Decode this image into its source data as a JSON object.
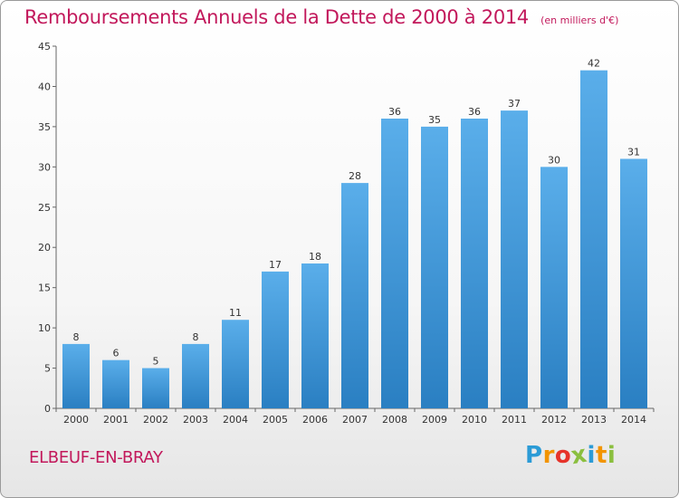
{
  "chart_data": {
    "type": "bar",
    "title": "Remboursements Annuels de la Dette de 2000 à 2014",
    "unit_note": "(en milliers d'€)",
    "categories": [
      "2000",
      "2001",
      "2002",
      "2003",
      "2004",
      "2005",
      "2006",
      "2007",
      "2008",
      "2009",
      "2010",
      "2011",
      "2012",
      "2013",
      "2014"
    ],
    "values": [
      8,
      6,
      5,
      8,
      11,
      17,
      18,
      28,
      36,
      35,
      36,
      37,
      30,
      42,
      31
    ],
    "ylim": [
      0,
      45
    ],
    "yticks": [
      0,
      5,
      10,
      15,
      20,
      25,
      30,
      35,
      40,
      45
    ],
    "xlabel": "",
    "ylabel": "",
    "grid": false,
    "bar_color": "#4ea0e0"
  },
  "commune": "ELBEUF-EN-BRAY",
  "logo": {
    "letters": [
      "P",
      "r",
      "o",
      "x",
      "i",
      "t",
      "i"
    ],
    "colors": [
      "#2b9bd6",
      "#f29400",
      "#e6332a",
      "#8bbf3f",
      "#2b9bd6",
      "#f29400",
      "#8bbf3f"
    ]
  }
}
